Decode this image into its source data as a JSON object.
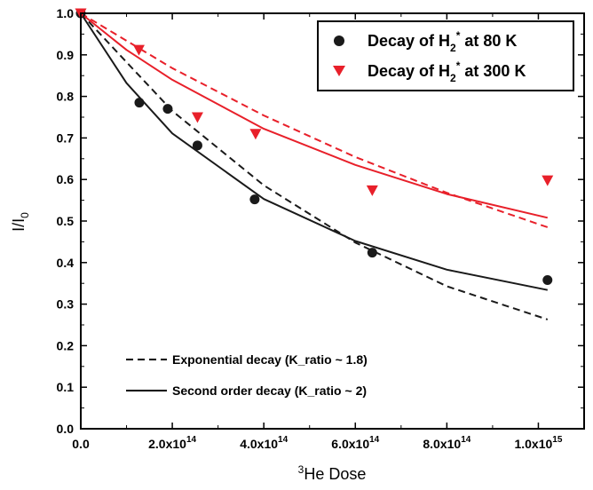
{
  "chart_data": {
    "type": "scatter",
    "title": "",
    "xlabel": {
      "pre": "3",
      "main": "He Dose"
    },
    "ylabel": {
      "main": "I/I",
      "sub": "0"
    },
    "xlim": [
      0,
      1100000000000000.0
    ],
    "ylim": [
      0,
      1.0
    ],
    "yticks": [
      {
        "v": 0.0,
        "label": "0.0"
      },
      {
        "v": 0.1,
        "label": "0.1"
      },
      {
        "v": 0.2,
        "label": "0.2"
      },
      {
        "v": 0.3,
        "label": "0.3"
      },
      {
        "v": 0.4,
        "label": "0.4"
      },
      {
        "v": 0.5,
        "label": "0.5"
      },
      {
        "v": 0.6,
        "label": "0.6"
      },
      {
        "v": 0.7,
        "label": "0.7"
      },
      {
        "v": 0.8,
        "label": "0.8"
      },
      {
        "v": 0.9,
        "label": "0.9"
      },
      {
        "v": 1.0,
        "label": "1.0"
      }
    ],
    "xticks": [
      {
        "v": 0,
        "mant": "0.0",
        "exp": ""
      },
      {
        "v": 200000000000000.0,
        "mant": "2.0x10",
        "exp": "14"
      },
      {
        "v": 400000000000000.0,
        "mant": "4.0x10",
        "exp": "14"
      },
      {
        "v": 600000000000000.0,
        "mant": "6.0x10",
        "exp": "14"
      },
      {
        "v": 800000000000000.0,
        "mant": "8.0x10",
        "exp": "14"
      },
      {
        "v": 1000000000000000.0,
        "mant": "1.0x10",
        "exp": "15"
      }
    ],
    "series": [
      {
        "name": {
          "pre": "Decay of H",
          "sub": "2",
          "sup": "*",
          "post": " at 80 K"
        },
        "marker": "circle",
        "color": "#1a1a1a",
        "points": [
          {
            "x": 0,
            "y": 1.0
          },
          {
            "x": 128000000000000.0,
            "y": 0.785
          },
          {
            "x": 190000000000000.0,
            "y": 0.77
          },
          {
            "x": 255000000000000.0,
            "y": 0.682
          },
          {
            "x": 380000000000000.0,
            "y": 0.552
          },
          {
            "x": 637000000000000.0,
            "y": 0.424
          },
          {
            "x": 1020000000000000.0,
            "y": 0.358
          }
        ]
      },
      {
        "name": {
          "pre": "Decay of H",
          "sub": "2",
          "sup": "*",
          "post": " at 300 K"
        },
        "marker": "triangle-down",
        "color": "#e8202a",
        "points": [
          {
            "x": 0,
            "y": 1.0
          },
          {
            "x": 127000000000000.0,
            "y": 0.912
          },
          {
            "x": 255000000000000.0,
            "y": 0.75
          },
          {
            "x": 382000000000000.0,
            "y": 0.71
          },
          {
            "x": 637000000000000.0,
            "y": 0.574
          },
          {
            "x": 1020000000000000.0,
            "y": 0.598
          }
        ]
      }
    ],
    "fits": [
      {
        "series": 0,
        "kind": "exponential",
        "style": "dashed",
        "color": "#1a1a1a",
        "x": [
          0,
          200000000000000.0,
          400000000000000.0,
          600000000000000.0,
          800000000000000.0,
          1020000000000000.0
        ],
        "y": [
          1.0,
          0.765,
          0.586,
          0.448,
          0.343,
          0.263
        ]
      },
      {
        "series": 0,
        "kind": "second-order",
        "style": "solid",
        "color": "#1a1a1a",
        "x": [
          0,
          100000000000000.0,
          200000000000000.0,
          400000000000000.0,
          600000000000000.0,
          800000000000000.0,
          1020000000000000.0
        ],
        "y": [
          1.0,
          0.832,
          0.711,
          0.553,
          0.452,
          0.383,
          0.334
        ]
      },
      {
        "series": 1,
        "kind": "exponential",
        "style": "dashed",
        "color": "#e8202a",
        "x": [
          0,
          200000000000000.0,
          400000000000000.0,
          600000000000000.0,
          800000000000000.0,
          1020000000000000.0
        ],
        "y": [
          1.0,
          0.868,
          0.754,
          0.654,
          0.568,
          0.485
        ]
      },
      {
        "series": 1,
        "kind": "second-order",
        "style": "solid",
        "color": "#e8202a",
        "x": [
          0,
          100000000000000.0,
          200000000000000.0,
          400000000000000.0,
          600000000000000.0,
          800000000000000.0,
          1020000000000000.0
        ],
        "y": [
          1.0,
          0.912,
          0.84,
          0.722,
          0.635,
          0.565,
          0.508
        ]
      }
    ],
    "legend": {
      "position": "top-right"
    },
    "line_legend": [
      {
        "style": "dashed",
        "label": "Exponential decay (K_ratio ~ 1.8)"
      },
      {
        "style": "solid",
        "label": "Second order decay (K_ratio ~ 2)"
      }
    ]
  }
}
